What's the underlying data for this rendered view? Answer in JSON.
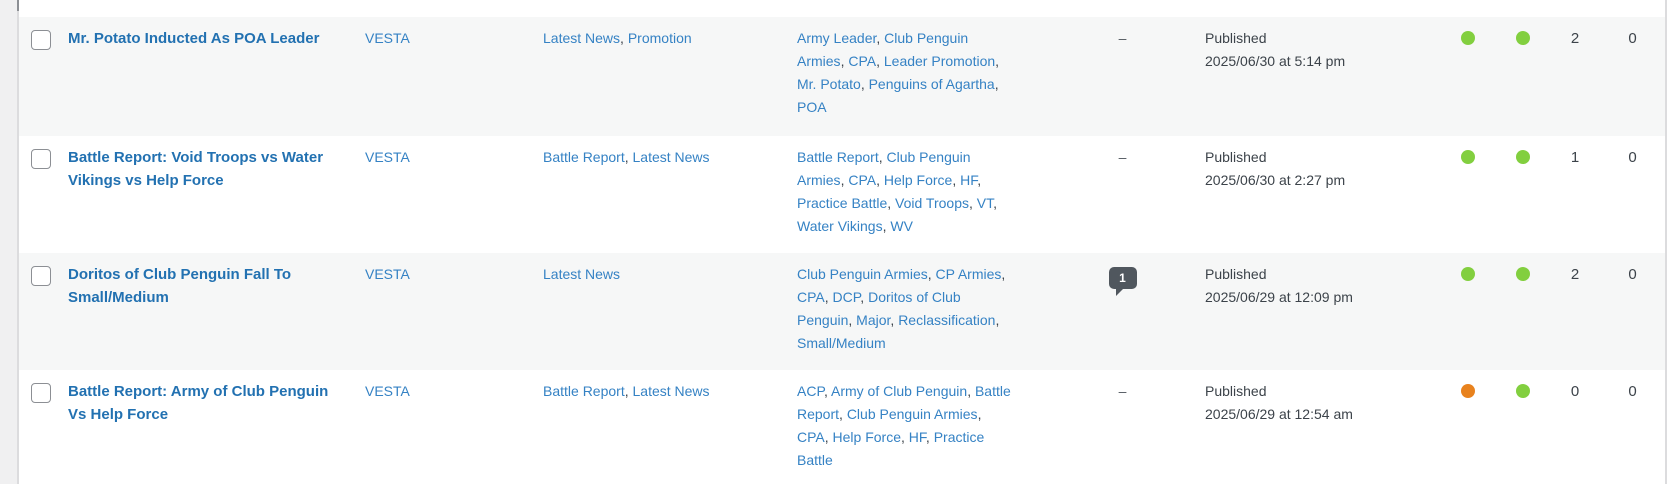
{
  "colors": {
    "title_link": "#2271b1",
    "link": "#3582c4",
    "text": "#3c434a",
    "green": "#82cf3f",
    "orange": "#e8821e",
    "bubble": "#50575e",
    "row_alt_background": "#f6f7f7"
  },
  "rows": [
    {
      "title": "Mr. Potato Inducted As POA Leader",
      "author": "VESTA",
      "categories": [
        "Latest News",
        "Promotion"
      ],
      "tags": [
        "Army Leader",
        "Club Penguin Armies",
        "CPA",
        "Leader Promotion",
        "Mr. Potato",
        "Penguins of Agartha",
        "POA"
      ],
      "comments": "–",
      "status": "Published",
      "date": "2025/06/30 at 5:14 pm",
      "indicators": [
        "green",
        "green"
      ],
      "counts": [
        "2",
        "0"
      ]
    },
    {
      "title": "Battle Report: Void Troops vs Water Vikings vs Help Force",
      "author": "VESTA",
      "categories": [
        "Battle Report",
        "Latest News"
      ],
      "tags": [
        "Battle Report",
        "Club Penguin Armies",
        "CPA",
        "Help Force",
        "HF",
        "Practice Battle",
        "Void Troops",
        "VT",
        "Water Vikings",
        "WV"
      ],
      "comments": "–",
      "status": "Published",
      "date": "2025/06/30 at 2:27 pm",
      "indicators": [
        "green",
        "green"
      ],
      "counts": [
        "1",
        "0"
      ]
    },
    {
      "title": "Doritos of Club Penguin Fall To Small/Medium",
      "author": "VESTA",
      "categories": [
        "Latest News"
      ],
      "tags": [
        "Club Penguin Armies",
        "CP Armies",
        "CPA",
        "DCP",
        "Doritos of Club Penguin",
        "Major",
        "Reclassification",
        "Small/Medium"
      ],
      "comments": "1",
      "status": "Published",
      "date": "2025/06/29 at 12:09 pm",
      "indicators": [
        "green",
        "green"
      ],
      "counts": [
        "2",
        "0"
      ]
    },
    {
      "title": "Battle Report: Army of Club Penguin Vs Help Force",
      "author": "VESTA",
      "categories": [
        "Battle Report",
        "Latest News"
      ],
      "tags": [
        "ACP",
        "Army of Club Penguin",
        "Battle Report",
        "Club Penguin Armies",
        "CPA",
        "Help Force",
        "HF",
        "Practice Battle"
      ],
      "comments": "–",
      "status": "Published",
      "date": "2025/06/29 at 12:54 am",
      "indicators": [
        "orange",
        "green"
      ],
      "counts": [
        "0",
        "0"
      ]
    }
  ]
}
